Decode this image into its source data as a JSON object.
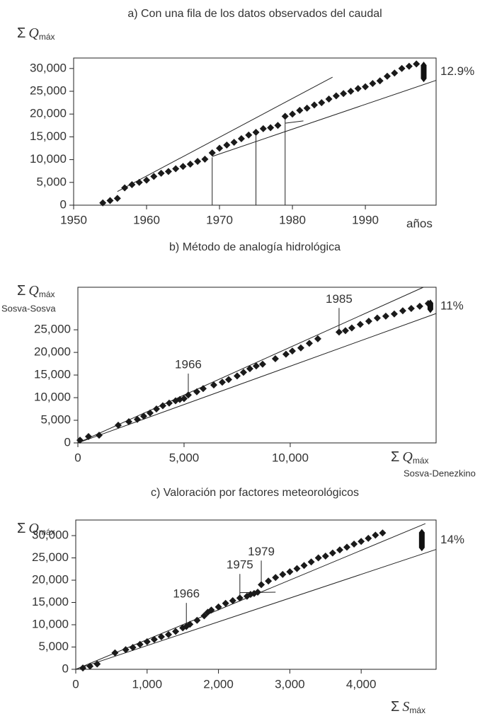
{
  "chart_data": [
    {
      "type": "scatter",
      "title": "a) Con una fila de los datos observados del caudal",
      "y_label": {
        "symbol": "Σ",
        "var": "Q",
        "sub": "máx"
      },
      "x_label": "años",
      "xlim": [
        1950,
        1999.7
      ],
      "ylim": [
        0,
        32300
      ],
      "xticks": [
        1950,
        1960,
        1970,
        1980,
        1990
      ],
      "yticks": [
        0,
        {
          "value": 5000,
          "label": "5,000"
        },
        {
          "value": 10000,
          "label": "10,000"
        },
        {
          "value": 15000,
          "label": "15,000"
        },
        {
          "value": 20000,
          "label": "20,000"
        },
        {
          "value": 25000,
          "label": "25,000"
        },
        {
          "value": 30000,
          "label": "30,000"
        }
      ],
      "color": "#1a1a1a",
      "x": [
        1954,
        1955,
        1956,
        1957,
        1958,
        1959,
        1960,
        1961,
        1962,
        1963,
        1964,
        1965,
        1966,
        1967,
        1968,
        1969,
        1970,
        1971,
        1972,
        1973,
        1974,
        1975,
        1976,
        1977,
        1978,
        1979,
        1980,
        1981,
        1982,
        1983,
        1984,
        1985,
        1986,
        1987,
        1988,
        1989,
        1990,
        1991,
        1992,
        1993,
        1994,
        1995,
        1996,
        1997
      ],
      "y": [
        500,
        1000,
        1500,
        3800,
        4500,
        5000,
        5500,
        6300,
        7000,
        7400,
        8000,
        8500,
        9000,
        9600,
        10100,
        11500,
        12500,
        13200,
        13800,
        14600,
        15400,
        16000,
        16800,
        17000,
        17500,
        19500,
        20000,
        20800,
        21300,
        22000,
        22500,
        23300,
        24000,
        24500,
        25000,
        25600,
        26000,
        26700,
        27300,
        28300,
        29000,
        30000,
        30500,
        31000
      ],
      "trend_lines": [
        {
          "x": [
            1956,
            1985.5
          ],
          "y": [
            3000,
            28100
          ]
        },
        {
          "x": [
            1969,
            1999.7
          ],
          "y": [
            10700,
            27400
          ]
        },
        {
          "x": [
            1979,
            1981.5
          ],
          "y": [
            18000,
            18500
          ]
        }
      ],
      "guides": [
        {
          "x": 1969,
          "y": 10500
        },
        {
          "x": 1975,
          "y": 16000
        },
        {
          "x": 1979,
          "y": 19500
        }
      ],
      "range": {
        "x": 1998,
        "y": [
          27000,
          31500
        ],
        "label": "12.9%"
      }
    },
    {
      "type": "scatter",
      "title": "b) Método de analogía hidrológica",
      "y_label": {
        "symbol": "Σ",
        "var": "Q",
        "sub": "máx"
      },
      "y_label_2": "Sosva-Sosva",
      "x_label": {
        "symbol": "Σ",
        "var": "Q",
        "sub": "máx"
      },
      "x_label_2": "Sosva-Denezkino",
      "xlim": [
        0,
        16870
      ],
      "ylim": [
        0,
        34400
      ],
      "xticks": [
        0,
        {
          "value": 5000,
          "label": "5,000"
        },
        {
          "value": 10000,
          "label": "10,000"
        }
      ],
      "yticks": [
        0,
        {
          "value": 5000,
          "label": "5,000"
        },
        {
          "value": 10000,
          "label": "10,000"
        },
        {
          "value": 15000,
          "label": "15,000"
        },
        {
          "value": 20000,
          "label": "20,000"
        },
        {
          "value": 25000,
          "label": "25,000"
        }
      ],
      "color": "#1a1a1a",
      "x": [
        100,
        500,
        1000,
        1900,
        2400,
        2800,
        3100,
        3400,
        3700,
        4000,
        4300,
        4600,
        4800,
        5000,
        5200,
        5600,
        5900,
        6400,
        6800,
        7100,
        7500,
        7800,
        8100,
        8400,
        8700,
        9300,
        9800,
        10100,
        10500,
        10900,
        11300,
        12300,
        12600,
        12900,
        13300,
        13700,
        14100,
        14500,
        14900,
        15300,
        15700,
        16100,
        16500
      ],
      "y": [
        600,
        1400,
        1700,
        3900,
        4700,
        5200,
        5900,
        6600,
        7500,
        8200,
        8800,
        9300,
        9600,
        9800,
        10600,
        11300,
        12000,
        12800,
        13400,
        14000,
        14800,
        15600,
        16400,
        17000,
        17400,
        18600,
        19600,
        20300,
        21000,
        22000,
        23000,
        24500,
        24800,
        25400,
        26200,
        26900,
        27600,
        28000,
        28500,
        29200,
        29700,
        30200,
        30800
      ],
      "trend_lines": [
        {
          "x": [
            0,
            16270
          ],
          "y": [
            0,
            34400
          ]
        },
        {
          "x": [
            0,
            16870
          ],
          "y": [
            0,
            28600
          ]
        }
      ],
      "annotations": [
        {
          "x": 5200,
          "y": 10000,
          "label": "1966"
        },
        {
          "x": 12300,
          "y": 24500,
          "label": "1985"
        }
      ],
      "range": {
        "x": 16600,
        "y": [
          28700,
          31700
        ],
        "label": "11%"
      }
    },
    {
      "type": "scatter",
      "title": "c) Valoración por factores meteorológicos",
      "y_label": {
        "symbol": "Σ",
        "var": "Q",
        "sub": "máx"
      },
      "x_label": {
        "symbol": "Σ",
        "var": "S",
        "sub": "máx"
      },
      "xlim": [
        0,
        5050
      ],
      "ylim": [
        0,
        33500
      ],
      "xticks": [
        0,
        {
          "value": 1000,
          "label": "1,000"
        },
        {
          "value": 2000,
          "label": "2,000"
        },
        {
          "value": 3000,
          "label": "3,000"
        },
        {
          "value": 4000,
          "label": "4,000"
        }
      ],
      "yticks": [
        0,
        {
          "value": 5000,
          "label": "5,000"
        },
        {
          "value": 10000,
          "label": "10,000"
        },
        {
          "value": 15000,
          "label": "15,000"
        },
        {
          "value": 20000,
          "label": "20,000"
        },
        {
          "value": 25000,
          "label": "25,000"
        },
        {
          "value": 30000,
          "label": "30,000"
        }
      ],
      "color": "#1a1a1a",
      "x": [
        100,
        200,
        300,
        550,
        700,
        800,
        900,
        1000,
        1100,
        1200,
        1300,
        1400,
        1500,
        1550,
        1600,
        1700,
        1800,
        1850,
        1900,
        2000,
        2100,
        2200,
        2300,
        2400,
        2450,
        2500,
        2550,
        2600,
        2700,
        2800,
        2900,
        3000,
        3100,
        3200,
        3300,
        3400,
        3500,
        3600,
        3700,
        3800,
        3900,
        4000,
        4100,
        4200,
        4300
      ],
      "y": [
        300,
        700,
        1200,
        3700,
        4400,
        4900,
        5600,
        6200,
        6700,
        7300,
        7800,
        8500,
        9300,
        9600,
        10100,
        11000,
        12000,
        12800,
        13300,
        14000,
        14800,
        15400,
        16000,
        16400,
        16800,
        17000,
        17300,
        19000,
        19800,
        20600,
        21300,
        21900,
        22600,
        23300,
        24100,
        25000,
        25400,
        26100,
        26800,
        27400,
        28100,
        28700,
        29400,
        30100,
        30600
      ],
      "trend_lines": [
        {
          "x": [
            0,
            4900
          ],
          "y": [
            0,
            32700
          ]
        },
        {
          "x": [
            0,
            5050
          ],
          "y": [
            0,
            26900
          ]
        },
        {
          "x": [
            2300,
            2800
          ],
          "y": [
            17200,
            17300
          ]
        }
      ],
      "annotations": [
        {
          "x": 1550,
          "y": 9500,
          "label": "1966"
        },
        {
          "x": 2300,
          "y": 16000,
          "label": "1975"
        },
        {
          "x": 2600,
          "y": 19000,
          "label": "1979"
        }
      ],
      "range": {
        "x": 4850,
        "y": [
          26500,
          31500
        ],
        "label": "14%"
      }
    }
  ]
}
